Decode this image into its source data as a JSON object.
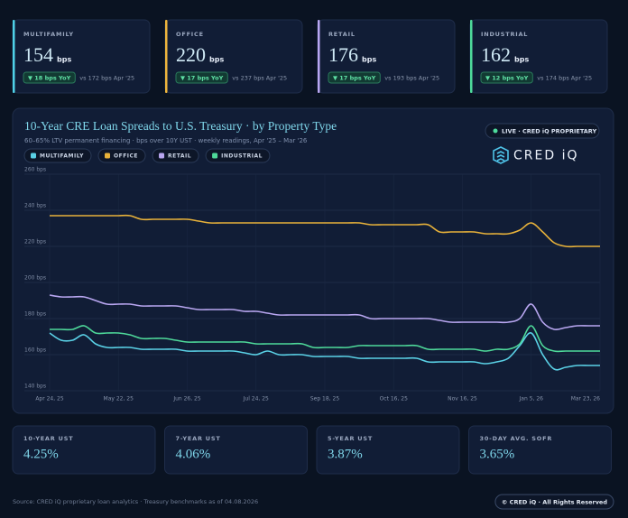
{
  "kpis": [
    {
      "label": "MULTIFAMILY",
      "value": "154",
      "unit": "bps",
      "change": "▼ 18 bps YoY",
      "compare": "vs 172 bps Apr '25",
      "color": "#4fd1e8"
    },
    {
      "label": "OFFICE",
      "value": "220",
      "unit": "bps",
      "change": "▼ 17 bps YoY",
      "compare": "vs 237 bps Apr '25",
      "color": "#eeb53c"
    },
    {
      "label": "RETAIL",
      "value": "176",
      "unit": "bps",
      "change": "▼ 17 bps YoY",
      "compare": "vs 193 bps Apr '25",
      "color": "#b9a7f2"
    },
    {
      "label": "INDUSTRIAL",
      "value": "162",
      "unit": "bps",
      "change": "▼ 12 bps YoY",
      "compare": "vs 174 bps Apr '25",
      "color": "#4edb9c"
    }
  ],
  "badge": "LIVE · CRED iQ PROPRIETARY",
  "logo": "CRED iQ",
  "chart_data": {
    "type": "line",
    "title": "10-Year CRE Loan Spreads to U.S. Treasury · by Property Type",
    "subtitle": "60–65% LTV permanent financing · bps over 10Y UST · weekly readings, Apr '25 – Mar '26",
    "categories": [
      "Apr 24, 25",
      null,
      null,
      null,
      null,
      null,
      "May 22, 25",
      null,
      null,
      null,
      null,
      null,
      "Jun 26, 25",
      null,
      null,
      null,
      null,
      null,
      "Jul 24, 25",
      null,
      null,
      null,
      null,
      null,
      "Sep 18, 25",
      null,
      null,
      null,
      null,
      null,
      "Oct 16, 25",
      null,
      null,
      null,
      null,
      null,
      "Nov 16, 25",
      null,
      null,
      null,
      null,
      null,
      "Jan 5, 26",
      null,
      null,
      null,
      null,
      null,
      "Mar 23, 26"
    ],
    "ylim": [
      140,
      260
    ],
    "yticks": [
      {
        "value": 140,
        "label": "140 bps"
      },
      {
        "value": 160,
        "label": "160 bps"
      },
      {
        "value": 180,
        "label": "180 bps"
      },
      {
        "value": 200,
        "label": "200 bps"
      },
      {
        "value": 220,
        "label": "220 bps"
      },
      {
        "value": 240,
        "label": "240 bps"
      },
      {
        "value": 260,
        "label": "260 bps"
      }
    ],
    "grid": true,
    "series": [
      {
        "name": "MULTIFAMILY",
        "color": "#5ad1e6",
        "values": [
          172,
          168,
          168,
          171,
          166,
          164,
          164,
          164,
          163,
          163,
          163,
          163,
          162,
          162,
          162,
          162,
          162,
          161,
          160,
          162,
          160,
          160,
          160,
          159,
          159,
          159,
          159,
          158,
          158,
          158,
          158,
          158,
          158,
          156,
          156,
          156,
          156,
          156,
          155,
          156,
          158,
          165,
          172,
          160,
          152,
          153,
          154,
          154,
          154
        ]
      },
      {
        "name": "OFFICE",
        "color": "#e8b23a",
        "values": [
          237,
          237,
          237,
          237,
          237,
          237,
          237,
          237,
          235,
          235,
          235,
          235,
          235,
          234,
          233,
          233,
          233,
          233,
          233,
          233,
          233,
          233,
          233,
          233,
          233,
          233,
          233,
          233,
          232,
          232,
          232,
          232,
          232,
          232,
          228,
          228,
          228,
          228,
          227,
          227,
          227,
          229,
          233,
          228,
          222,
          220,
          220,
          220,
          220
        ]
      },
      {
        "name": "RETAIL",
        "color": "#b8a6f0",
        "values": [
          193,
          192,
          192,
          192,
          190,
          188,
          188,
          188,
          187,
          187,
          187,
          187,
          186,
          185,
          185,
          185,
          185,
          184,
          184,
          183,
          182,
          182,
          182,
          182,
          182,
          182,
          182,
          182,
          180,
          180,
          180,
          180,
          180,
          180,
          179,
          178,
          178,
          178,
          178,
          178,
          178,
          180,
          188,
          178,
          174,
          175,
          176,
          176,
          176
        ]
      },
      {
        "name": "INDUSTRIAL",
        "color": "#4ed99a",
        "values": [
          174,
          174,
          174,
          176,
          172,
          172,
          172,
          171,
          169,
          169,
          169,
          168,
          167,
          167,
          167,
          167,
          167,
          167,
          166,
          166,
          166,
          166,
          166,
          164,
          164,
          164,
          164,
          165,
          165,
          165,
          165,
          165,
          165,
          163,
          163,
          163,
          163,
          163,
          162,
          163,
          163,
          166,
          176,
          165,
          162,
          162,
          162,
          162,
          162
        ]
      }
    ]
  },
  "rates": [
    {
      "label": "10-YEAR UST",
      "value": "4.25%"
    },
    {
      "label": "7-YEAR UST",
      "value": "4.06%"
    },
    {
      "label": "5-YEAR UST",
      "value": "3.87%"
    },
    {
      "label": "30-DAY AVG. SOFR",
      "value": "3.65%"
    }
  ],
  "footer": {
    "source": "Source: CRED iQ proprietary loan analytics · Treasury benchmarks as of 04.08.2026",
    "rights": "© CRED iQ · All Rights Reserved"
  }
}
